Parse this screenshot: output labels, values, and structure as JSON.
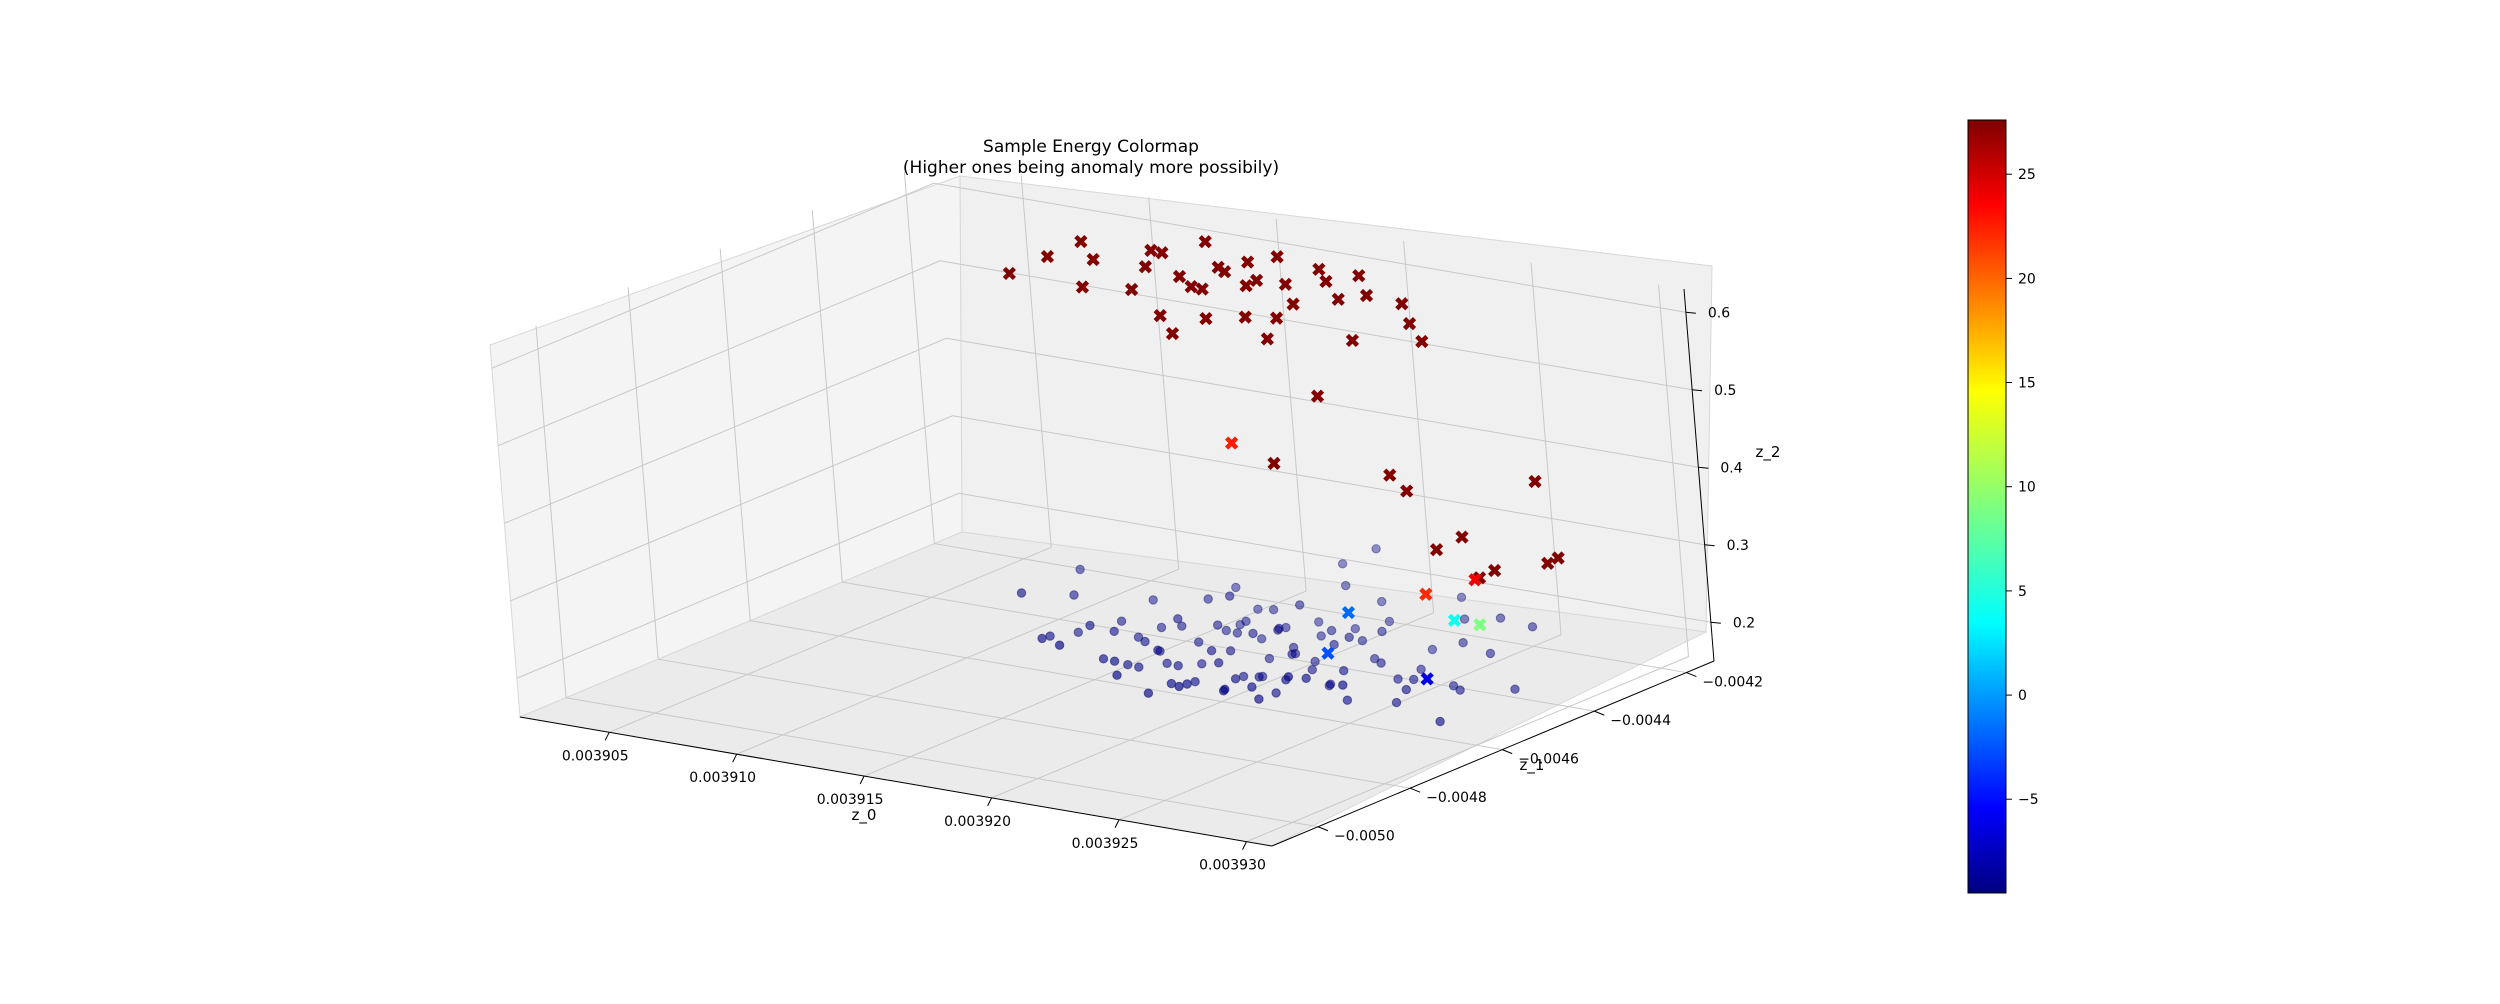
{
  "chart_data": {
    "type": "scatter",
    "title": "Sample Energy Colormap",
    "subtitle": "(Higher ones being anomaly more possibily)",
    "xlabel": "z_0",
    "ylabel": "z_1",
    "zlabel": "z_2",
    "xlim": [
      0.0039015,
      0.003931
    ],
    "ylim": [
      -0.0051,
      -0.00414
    ],
    "zlim": [
      0.15,
      0.63
    ],
    "xticks": [
      "0.003905",
      "0.003910",
      "0.003915",
      "0.003920",
      "0.003925",
      "0.003930"
    ],
    "xtick_values": [
      0.003905,
      0.00391,
      0.003915,
      0.00392,
      0.003925,
      0.00393
    ],
    "yticks": [
      "−0.0050",
      "−0.0048",
      "−0.0046",
      "−0.0044",
      "−0.0042"
    ],
    "ytick_values": [
      -0.005,
      -0.0048,
      -0.0046,
      -0.0044,
      -0.0042
    ],
    "zticks": [
      "0.2",
      "0.3",
      "0.4",
      "0.5",
      "0.6"
    ],
    "ztick_values": [
      0.2,
      0.3,
      0.4,
      0.5,
      0.6
    ],
    "grid": true,
    "colormap": "jet",
    "colorbar": {
      "min": -9.5,
      "max": 27.6,
      "ticks": [
        "−5",
        "0",
        "5",
        "10",
        "15",
        "20",
        "25"
      ],
      "tick_values": [
        -5,
        0,
        5,
        10,
        15,
        20,
        25
      ]
    },
    "series": [
      {
        "marker": "circle",
        "color": "#00008b",
        "points": [
          [
            0.003917,
            -0.00442,
            0.18
          ],
          [
            0.003918,
            -0.00445,
            0.19
          ],
          [
            0.003916,
            -0.00451,
            0.17
          ],
          [
            0.003919,
            -0.00447,
            0.2
          ],
          [
            0.00392,
            -0.00444,
            0.18
          ],
          [
            0.003921,
            -0.00449,
            0.19
          ],
          [
            0.003918,
            -0.00453,
            0.17
          ],
          [
            0.003922,
            -0.00446,
            0.2
          ],
          [
            0.003917,
            -0.00448,
            0.18
          ],
          [
            0.003919,
            -0.00452,
            0.19
          ],
          [
            0.003923,
            -0.00443,
            0.18
          ],
          [
            0.00392,
            -0.00455,
            0.17
          ],
          [
            0.003916,
            -0.00446,
            0.19
          ],
          [
            0.003921,
            -0.00441,
            0.2
          ],
          [
            0.003918,
            -0.00458,
            0.18
          ],
          [
            0.003924,
            -0.00447,
            0.19
          ],
          [
            0.003917,
            -0.00455,
            0.17
          ],
          [
            0.003922,
            -0.00451,
            0.18
          ],
          [
            0.003919,
            -0.0044,
            0.19
          ],
          [
            0.003915,
            -0.0045,
            0.18
          ],
          [
            0.003923,
            -0.00453,
            0.17
          ],
          [
            0.00392,
            -0.00447,
            0.21
          ],
          [
            0.003918,
            -0.00443,
            0.2
          ],
          [
            0.003921,
            -0.00457,
            0.18
          ],
          [
            0.003916,
            -0.00454,
            0.19
          ],
          [
            0.003925,
            -0.00449,
            0.18
          ],
          [
            0.003919,
            -0.0046,
            0.17
          ],
          [
            0.003922,
            -0.0044,
            0.19
          ],
          [
            0.003917,
            -0.00439,
            0.18
          ],
          [
            0.003924,
            -0.00455,
            0.2
          ],
          [
            0.00392,
            -0.00451,
            0.16
          ],
          [
            0.003918,
            -0.00449,
            0.21
          ],
          [
            0.003921,
            -0.00445,
            0.17
          ],
          [
            0.003915,
            -0.00445,
            0.18
          ],
          [
            0.003926,
            -0.00451,
            0.19
          ],
          [
            0.003919,
            -0.00456,
            0.2
          ],
          [
            0.003923,
            -0.00448,
            0.22
          ],
          [
            0.003917,
            -0.00461,
            0.18
          ],
          [
            0.003922,
            -0.00459,
            0.17
          ],
          [
            0.00392,
            -0.00438,
            0.18
          ],
          [
            0.003914,
            -0.00448,
            0.19
          ],
          [
            0.003925,
            -0.00444,
            0.18
          ],
          [
            0.003918,
            -0.00437,
            0.2
          ],
          [
            0.003921,
            -0.00462,
            0.19
          ],
          [
            0.003916,
            -0.00458,
            0.17
          ],
          [
            0.003924,
            -0.00458,
            0.19
          ],
          [
            0.003919,
            -0.00444,
            0.16
          ],
          [
            0.003923,
            -0.00441,
            0.21
          ],
          [
            0.003917,
            -0.00452,
            0.22
          ],
          [
            0.00392,
            -0.0046,
            0.2
          ],
          [
            0.003922,
            -0.00455,
            0.21
          ],
          [
            0.003918,
            -0.0044,
            0.17
          ],
          [
            0.003926,
            -0.00455,
            0.17
          ],
          [
            0.003915,
            -0.00455,
            0.2
          ],
          [
            0.003921,
            -0.00436,
            0.19
          ],
          [
            0.003919,
            -0.00465,
            0.18
          ],
          [
            0.003927,
            -0.00448,
            0.18
          ],
          [
            0.003913,
            -0.00452,
            0.18
          ],
          [
            0.003924,
            -0.00436,
            0.18
          ],
          [
            0.003916,
            -0.0044,
            0.21
          ],
          [
            0.003922,
            -0.00464,
            0.19
          ],
          [
            0.00392,
            -0.00442,
            0.23
          ],
          [
            0.003918,
            -0.00462,
            0.21
          ],
          [
            0.003925,
            -0.0046,
            0.18
          ],
          [
            0.003917,
            -0.00435,
            0.19
          ],
          [
            0.003923,
            -0.00462,
            0.2
          ],
          [
            0.003919,
            -0.00433,
            0.18
          ],
          [
            0.003921,
            -0.00452,
            0.23
          ],
          [
            0.003916,
            -0.00463,
            0.19
          ],
          [
            0.003928,
            -0.00452,
            0.19
          ],
          [
            0.003914,
            -0.00441,
            0.2
          ],
          [
            0.003926,
            -0.0044,
            0.21
          ],
          [
            0.00392,
            -0.00467,
            0.19
          ],
          [
            0.003918,
            -0.00446,
            0.24
          ],
          [
            0.003922,
            -0.00434,
            0.2
          ],
          [
            0.003924,
            -0.00463,
            0.21
          ],
          [
            0.003917,
            -0.00466,
            0.2
          ],
          [
            0.003921,
            -0.0043,
            0.21
          ],
          [
            0.003919,
            -0.0047,
            0.18
          ],
          [
            0.003923,
            -0.00468,
            0.19
          ],
          [
            0.003915,
            -0.0046,
            0.22
          ],
          [
            0.003927,
            -0.00458,
            0.2
          ],
          [
            0.003913,
            -0.00458,
            0.19
          ],
          [
            0.003925,
            -0.00434,
            0.22
          ],
          [
            0.00392,
            -0.00432,
            0.23
          ],
          [
            0.003916,
            -0.00434,
            0.21
          ],
          [
            0.003922,
            -0.0047,
            0.2
          ],
          [
            0.003918,
            -0.00471,
            0.2
          ],
          [
            0.003928,
            -0.00445,
            0.22
          ],
          [
            0.003929,
            -0.00462,
            0.18
          ],
          [
            0.003912,
            -0.00447,
            0.21
          ],
          [
            0.003926,
            -0.00466,
            0.22
          ],
          [
            0.003924,
            -0.00429,
            0.23
          ],
          [
            0.003914,
            -0.00465,
            0.21
          ],
          [
            0.003921,
            -0.00474,
            0.21
          ],
          [
            0.003919,
            -0.00427,
            0.24
          ],
          [
            0.00393,
            -0.00451,
            0.2
          ],
          [
            0.003911,
            -0.0044,
            0.22
          ],
          [
            0.003927,
            -0.00437,
            0.24
          ],
          [
            0.003916,
            -0.00472,
            0.23
          ],
          [
            0.003923,
            -0.00475,
            0.22
          ],
          [
            0.003929,
            -0.00441,
            0.25
          ],
          [
            0.003912,
            -0.00458,
            0.24
          ],
          [
            0.00392,
            -0.00425,
            0.26
          ],
          [
            0.003925,
            -0.00472,
            0.24
          ]
        ]
      },
      {
        "marker": "x",
        "name": "",
        "points": [
          [
            0.003912,
            -0.00425,
            0.6,
            27.5
          ],
          [
            0.003913,
            -0.00428,
            0.61,
            27.5
          ],
          [
            0.003914,
            -0.00424,
            0.62,
            27.5
          ],
          [
            0.003915,
            -0.00427,
            0.6,
            27.5
          ],
          [
            0.003916,
            -0.00426,
            0.61,
            27.5
          ],
          [
            0.003914,
            -0.0043,
            0.59,
            27.5
          ],
          [
            0.003917,
            -0.00425,
            0.62,
            27.5
          ],
          [
            0.003918,
            -0.00429,
            0.6,
            27.5
          ],
          [
            0.003916,
            -0.00431,
            0.61,
            27.5
          ],
          [
            0.003919,
            -0.00427,
            0.62,
            27.5
          ],
          [
            0.003915,
            -0.00433,
            0.59,
            27.5
          ],
          [
            0.00392,
            -0.00424,
            0.61,
            27.5
          ],
          [
            0.003917,
            -0.00432,
            0.6,
            27.5
          ],
          [
            0.003918,
            -0.00435,
            0.62,
            27.5
          ],
          [
            0.003921,
            -0.00428,
            0.6,
            27.5
          ],
          [
            0.003913,
            -0.00435,
            0.58,
            27.5
          ],
          [
            0.003919,
            -0.00433,
            0.59,
            27.5
          ],
          [
            0.00392,
            -0.00431,
            0.62,
            27.5
          ],
          [
            0.003916,
            -0.00436,
            0.6,
            27.5
          ],
          [
            0.003922,
            -0.00426,
            0.59,
            27.5
          ],
          [
            0.003918,
            -0.00438,
            0.58,
            27.5
          ],
          [
            0.003921,
            -0.00434,
            0.61,
            27.5
          ],
          [
            0.003914,
            -0.00437,
            0.62,
            27.5
          ],
          [
            0.003923,
            -0.0043,
            0.58,
            27.5
          ],
          [
            0.003911,
            -0.00432,
            0.6,
            27.5
          ],
          [
            0.00391,
            -0.00429,
            0.61,
            27.5
          ],
          [
            0.003909,
            -0.00431,
            0.59,
            27.5
          ],
          [
            0.003908,
            -0.00434,
            0.57,
            27.5
          ],
          [
            0.003912,
            -0.0044,
            0.59,
            27.5
          ],
          [
            0.003915,
            -0.0044,
            0.57,
            27.5
          ],
          [
            0.003917,
            -0.00441,
            0.58,
            27.5
          ],
          [
            0.003919,
            -0.00439,
            0.56,
            27.5
          ],
          [
            0.003922,
            -0.00437,
            0.57,
            27.5
          ],
          [
            0.003924,
            -0.00433,
            0.57,
            27.5
          ],
          [
            0.00392,
            -0.00442,
            0.6,
            27.5
          ],
          [
            0.003916,
            -0.00443,
            0.56,
            27.5
          ],
          [
            0.003921,
            -0.0044,
            0.5,
            27.5
          ],
          [
            0.00392,
            -0.00445,
            0.42,
            27.5
          ],
          [
            0.003924,
            -0.00442,
            0.42,
            27.5
          ],
          [
            0.003925,
            -0.00444,
            0.41,
            27.5
          ],
          [
            0.003929,
            -0.00438,
            0.43,
            27.5
          ],
          [
            0.003928,
            -0.00449,
            0.38,
            27.5
          ],
          [
            0.003926,
            -0.00444,
            0.34,
            27.5
          ],
          [
            0.003928,
            -0.00446,
            0.32,
            27.5
          ],
          [
            0.003929,
            -0.00448,
            0.34,
            27.5
          ],
          [
            0.00393,
            -0.00442,
            0.34,
            27.5
          ],
          [
            0.003931,
            -0.00445,
            0.36,
            27.5
          ],
          [
            0.003918,
            -0.00443,
            0.43,
            22.0
          ],
          [
            0.003926,
            -0.00447,
            0.29,
            21.5
          ],
          [
            0.003928,
            -0.00452,
            0.28,
            5.0
          ],
          [
            0.003929,
            -0.00452,
            0.28,
            9.0
          ],
          [
            0.003924,
            -0.00453,
            0.27,
            -1.0
          ],
          [
            0.003924,
            -0.00458,
            0.23,
            -2.0
          ],
          [
            0.003929,
            -0.00464,
            0.24,
            -6.0
          ],
          [
            0.003928,
            -0.00447,
            0.32,
            23.5
          ]
        ]
      }
    ]
  }
}
